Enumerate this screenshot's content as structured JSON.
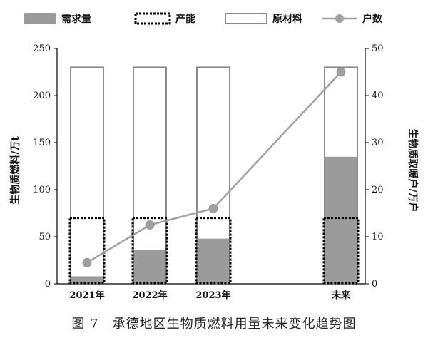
{
  "chart_data": {
    "type": "bar",
    "categories": [
      "2021年",
      "2022年",
      "2023年",
      "未来"
    ],
    "legend": [
      {
        "name": "需求量",
        "style": "filled-gray"
      },
      {
        "name": "产能",
        "style": "dotted-outline"
      },
      {
        "name": "原材料",
        "style": "outline"
      },
      {
        "name": "户数",
        "style": "line-marker"
      }
    ],
    "series": [
      {
        "name": "原材料",
        "axis": "left",
        "values": [
          230,
          230,
          230,
          230
        ]
      },
      {
        "name": "需求量",
        "axis": "left",
        "values": [
          8,
          36,
          48,
          135
        ]
      },
      {
        "name": "产能",
        "axis": "left",
        "values": [
          70,
          70,
          70,
          70
        ]
      },
      {
        "name": "户数",
        "axis": "right",
        "values": [
          4.5,
          12.5,
          16,
          45
        ]
      }
    ],
    "ylabel": "生物质燃料/万t",
    "y2label": "生物质取暖户/万户",
    "ylim": [
      0,
      250
    ],
    "y2lim": [
      0,
      50
    ],
    "yticks": [
      "0",
      "50",
      "100",
      "150",
      "200",
      "250"
    ],
    "y2ticks": [
      "0",
      "10",
      "20",
      "30",
      "40",
      "50"
    ],
    "colors": {
      "demand": "#9b9b9b",
      "outline": "#8a8a8a",
      "capacity": "#000000",
      "households": "#a0a0a0"
    }
  },
  "caption": "图 7　承德地区生物质燃料用量未来变化趋势图"
}
